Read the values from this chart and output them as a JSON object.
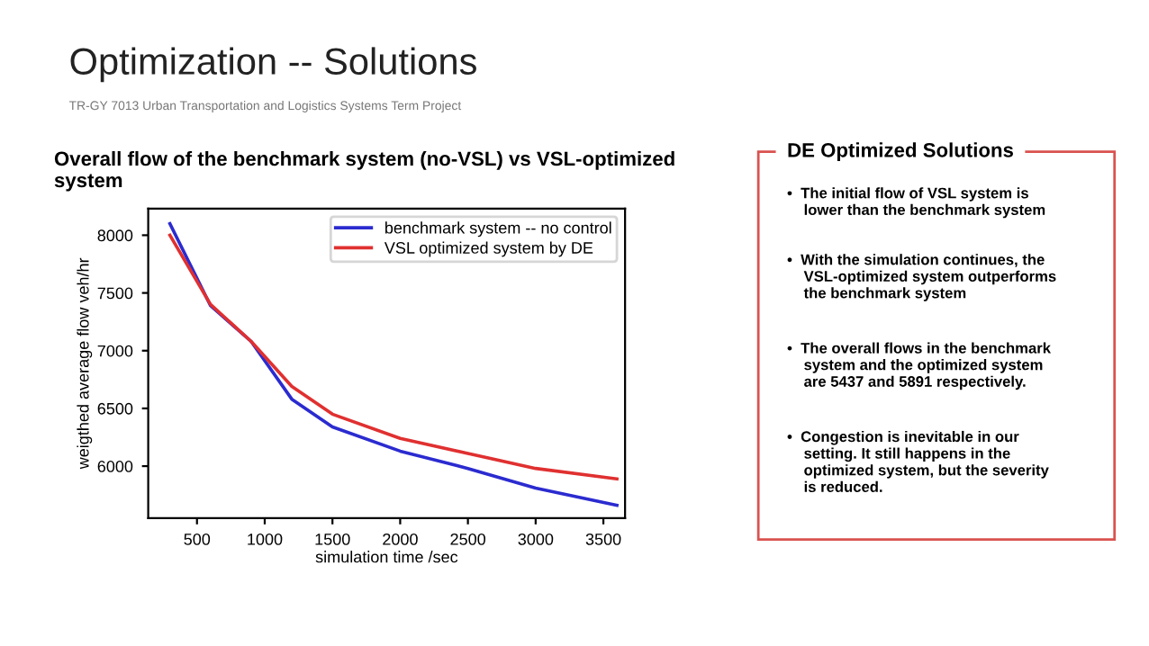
{
  "chart_data": {
    "type": "line",
    "title": "Optimization -- Solutions",
    "subtitle": "TR-GY 7013 Urban Transportation and Logistics Systems Term Project",
    "xlabel": "simulation time /sec",
    "ylabel": "weigthed average flow veh/hr",
    "x": [
      300,
      600,
      900,
      1200,
      1500,
      2000,
      2500,
      3000,
      3600
    ],
    "series": [
      {
        "name": "benchmark system -- no control",
        "color": "#2b2bd0",
        "values": [
          8100,
          7390,
          7080,
          6580,
          6340,
          6130,
          5980,
          5810,
          5660
        ]
      },
      {
        "name": "VSL optimized system by DE",
        "color": "#e03030",
        "values": [
          8000,
          7400,
          7080,
          6690,
          6450,
          6240,
          6110,
          5980,
          5890
        ]
      }
    ],
    "xlim": [
      140,
      3660
    ],
    "ylim": [
      5550,
      8230
    ],
    "xticks": [
      500,
      1000,
      1500,
      2000,
      2500,
      3000,
      3500
    ],
    "yticks": [
      6000,
      6500,
      7000,
      7500,
      8000
    ],
    "grid": false,
    "legend": "top right",
    "marker": "none",
    "line_style": "solid",
    "annotations": [
      "Overall flow of the benchmark system (no-VSL) vs VSL-optimized\nsystem",
      "DE Optimized Solutions",
      "•  The initial flow of VSL system is\n    lower than the benchmark system",
      "•  With the simulation continues, the\n    VSL-optimized system outperforms\n    the benchmark system",
      "•  The overall flows in the benchmark\n    system and the optimized system\n    are 5437 and 5891 respectively.",
      "•  Congestion is inevitable in our\n    setting. It still happens in the\n    optimized system, but the severity\n    is reduced."
    ]
  }
}
